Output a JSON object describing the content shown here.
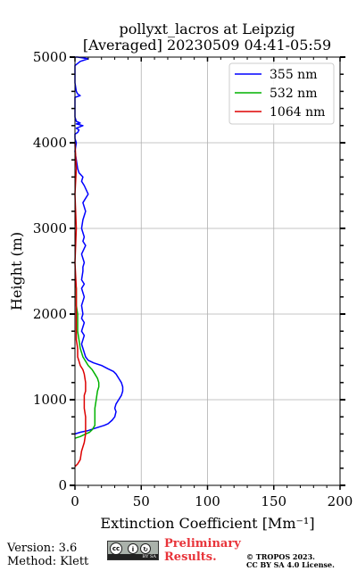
{
  "chart_data": {
    "type": "line",
    "title_line1": "pollyxt_lacros at Leipzig",
    "title_line2": "[Averaged] 20230509 04:41-05:59",
    "xlabel": "Extinction Coefficient [Mm⁻¹]",
    "ylabel": "Height (m)",
    "xlim": [
      0,
      200
    ],
    "ylim": [
      0,
      5000
    ],
    "xticks": [
      0,
      50,
      100,
      150,
      200
    ],
    "yticks": [
      0,
      1000,
      2000,
      3000,
      4000,
      5000
    ],
    "grid": true,
    "legend_position": "top-right",
    "series": [
      {
        "name": "355 nm",
        "color": "#0000ff",
        "x": [
          0,
          4,
          10,
          14,
          18,
          22,
          25,
          28,
          30,
          31,
          30,
          31,
          33,
          35,
          36,
          36,
          35,
          33,
          31,
          29,
          25,
          20,
          14,
          10,
          8,
          7,
          6,
          5,
          6,
          7,
          5,
          6,
          7,
          5,
          6,
          5,
          7,
          6,
          5,
          7,
          5,
          6,
          6,
          7,
          5,
          8,
          6,
          7,
          5,
          6,
          7,
          8,
          6,
          10,
          7,
          5,
          6,
          3,
          2,
          1,
          0,
          1,
          0,
          0,
          2,
          3,
          1,
          6,
          1,
          4,
          1,
          0,
          0,
          0,
          0,
          4,
          2,
          1,
          0,
          0,
          0,
          4,
          10,
          2,
          0
        ],
        "y": [
          600,
          620,
          640,
          660,
          680,
          700,
          720,
          760,
          800,
          860,
          900,
          950,
          1000,
          1050,
          1100,
          1150,
          1200,
          1250,
          1300,
          1330,
          1360,
          1400,
          1430,
          1460,
          1500,
          1550,
          1600,
          1650,
          1700,
          1750,
          1800,
          1850,
          1900,
          1950,
          2000,
          2100,
          2200,
          2250,
          2300,
          2350,
          2400,
          2500,
          2550,
          2600,
          2700,
          2800,
          2850,
          2900,
          3000,
          3100,
          3150,
          3200,
          3300,
          3400,
          3500,
          3550,
          3600,
          3650,
          3700,
          3800,
          3900,
          4000,
          4050,
          4100,
          4120,
          4150,
          4170,
          4200,
          4220,
          4230,
          4250,
          4300,
          4400,
          4500,
          4530,
          4550,
          4570,
          4600,
          4700,
          4800,
          4900,
          4950,
          4980,
          5000,
          5000
        ]
      },
      {
        "name": "532 nm",
        "color": "#00b200",
        "x": [
          0,
          4,
          8,
          11,
          13,
          15,
          15,
          15,
          16,
          17,
          18,
          18,
          17,
          15,
          13,
          10,
          8,
          6,
          5,
          4,
          3,
          2,
          2,
          1,
          1,
          1,
          0
        ],
        "y": [
          550,
          570,
          600,
          620,
          650,
          700,
          800,
          900,
          1000,
          1100,
          1150,
          1200,
          1250,
          1300,
          1350,
          1400,
          1450,
          1500,
          1550,
          1600,
          1700,
          1800,
          2000,
          2100,
          2200,
          2300,
          2400
        ]
      },
      {
        "name": "1064 nm",
        "color": "#dd0000",
        "x": [
          0,
          2,
          4,
          5,
          7,
          8,
          8,
          8,
          7,
          7,
          7,
          8,
          8,
          7,
          6,
          4,
          3,
          2,
          2,
          1,
          1,
          1,
          1,
          0,
          1,
          0,
          1,
          0
        ],
        "y": [
          220,
          250,
          300,
          400,
          500,
          600,
          700,
          800,
          900,
          1000,
          1050,
          1100,
          1200,
          1300,
          1350,
          1400,
          1450,
          1500,
          1600,
          1700,
          1800,
          2000,
          2300,
          2600,
          3000,
          3400,
          3700,
          4000
        ]
      }
    ]
  },
  "footer": {
    "version": "Version: 3.6",
    "method": "Method: Klett",
    "preliminary_line1": "Preliminary",
    "preliminary_line2": "Results.",
    "copyright_line1": "© TROPOS 2023.",
    "copyright_line2": "CC BY SA 4.0 License.",
    "license_badge": "BY SA"
  }
}
